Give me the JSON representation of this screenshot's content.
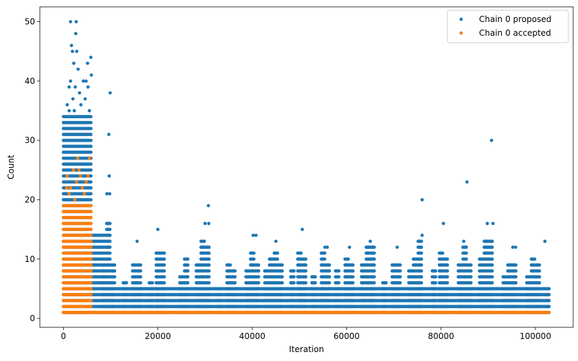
{
  "chart_data": {
    "type": "scatter",
    "title": "",
    "xlabel": "Iteration",
    "ylabel": "Count",
    "xlim": [
      -5000,
      108000
    ],
    "ylim": [
      -1.5,
      52.5
    ],
    "xticks": [
      0,
      20000,
      40000,
      60000,
      80000,
      100000
    ],
    "yticks": [
      0,
      10,
      20,
      30,
      40,
      50
    ],
    "grid": false,
    "legend_position": "top-right",
    "series": [
      {
        "name": "Chain 0 proposed",
        "color": "#1f77b4",
        "bands": [
          {
            "x": [
              0,
              6000
            ],
            "y_max": 34
          },
          {
            "x": [
              6000,
              9000
            ],
            "y_max": 14
          },
          {
            "x": [
              9000,
              103000
            ],
            "y_max": 5
          }
        ],
        "columns": [
          {
            "x": 8500,
            "y_max": 9
          },
          {
            "x": 9500,
            "y_max": 16
          },
          {
            "x": 10500,
            "y_max": 9
          },
          {
            "x": 13000,
            "y_max": 6
          },
          {
            "x": 15000,
            "y_max": 9
          },
          {
            "x": 16000,
            "y_max": 9
          },
          {
            "x": 18500,
            "y_max": 6
          },
          {
            "x": 20000,
            "y_max": 11
          },
          {
            "x": 21000,
            "y_max": 11
          },
          {
            "x": 25000,
            "y_max": 7
          },
          {
            "x": 26000,
            "y_max": 10
          },
          {
            "x": 28500,
            "y_max": 9
          },
          {
            "x": 29500,
            "y_max": 13
          },
          {
            "x": 30500,
            "y_max": 12
          },
          {
            "x": 33000,
            "y_max": 5
          },
          {
            "x": 35000,
            "y_max": 9
          },
          {
            "x": 36000,
            "y_max": 8
          },
          {
            "x": 39000,
            "y_max": 8
          },
          {
            "x": 40000,
            "y_max": 11
          },
          {
            "x": 41000,
            "y_max": 9
          },
          {
            "x": 43000,
            "y_max": 8
          },
          {
            "x": 44000,
            "y_max": 10
          },
          {
            "x": 45000,
            "y_max": 11
          },
          {
            "x": 46000,
            "y_max": 9
          },
          {
            "x": 48500,
            "y_max": 8
          },
          {
            "x": 50000,
            "y_max": 11
          },
          {
            "x": 51000,
            "y_max": 10
          },
          {
            "x": 53000,
            "y_max": 7
          },
          {
            "x": 55000,
            "y_max": 11
          },
          {
            "x": 56000,
            "y_max": 9
          },
          {
            "x": 58000,
            "y_max": 8
          },
          {
            "x": 60000,
            "y_max": 10
          },
          {
            "x": 61000,
            "y_max": 9
          },
          {
            "x": 63500,
            "y_max": 9
          },
          {
            "x": 64500,
            "y_max": 12
          },
          {
            "x": 65500,
            "y_max": 12
          },
          {
            "x": 68000,
            "y_max": 6
          },
          {
            "x": 70000,
            "y_max": 9
          },
          {
            "x": 71000,
            "y_max": 9
          },
          {
            "x": 73500,
            "y_max": 8
          },
          {
            "x": 74500,
            "y_max": 10
          },
          {
            "x": 75500,
            "y_max": 13
          },
          {
            "x": 78500,
            "y_max": 8
          },
          {
            "x": 80000,
            "y_max": 11
          },
          {
            "x": 81000,
            "y_max": 10
          },
          {
            "x": 84000,
            "y_max": 9
          },
          {
            "x": 85000,
            "y_max": 12
          },
          {
            "x": 86000,
            "y_max": 9
          },
          {
            "x": 88500,
            "y_max": 10
          },
          {
            "x": 89500,
            "y_max": 13
          },
          {
            "x": 90500,
            "y_max": 13
          },
          {
            "x": 93500,
            "y_max": 7
          },
          {
            "x": 94500,
            "y_max": 9
          },
          {
            "x": 95500,
            "y_max": 9
          },
          {
            "x": 98500,
            "y_max": 7
          },
          {
            "x": 99500,
            "y_max": 10
          },
          {
            "x": 100500,
            "y_max": 9
          },
          {
            "x": 102500,
            "y_max": 5
          }
        ],
        "points": [
          [
            1500,
            50
          ],
          [
            2700,
            50
          ],
          [
            2600,
            48
          ],
          [
            1700,
            46
          ],
          [
            1900,
            45
          ],
          [
            2800,
            45
          ],
          [
            5800,
            44
          ],
          [
            2200,
            43
          ],
          [
            5100,
            43
          ],
          [
            3100,
            42
          ],
          [
            5900,
            41
          ],
          [
            1500,
            40
          ],
          [
            4200,
            40
          ],
          [
            4800,
            40
          ],
          [
            1200,
            39
          ],
          [
            2500,
            39
          ],
          [
            5200,
            39
          ],
          [
            3400,
            38
          ],
          [
            9900,
            38
          ],
          [
            2000,
            37
          ],
          [
            4600,
            37
          ],
          [
            800,
            36
          ],
          [
            3700,
            36
          ],
          [
            5500,
            35
          ],
          [
            1200,
            35
          ],
          [
            2300,
            35
          ],
          [
            9600,
            31
          ],
          [
            90700,
            30
          ],
          [
            9700,
            24
          ],
          [
            9200,
            21
          ],
          [
            9800,
            21
          ],
          [
            30700,
            19
          ],
          [
            76000,
            20
          ],
          [
            85500,
            23
          ],
          [
            30000,
            16
          ],
          [
            30800,
            16
          ],
          [
            80500,
            16
          ],
          [
            89800,
            16
          ],
          [
            91000,
            16
          ],
          [
            20000,
            15
          ],
          [
            50600,
            15
          ],
          [
            40200,
            14
          ],
          [
            40800,
            14
          ],
          [
            76000,
            14
          ],
          [
            102000,
            13
          ],
          [
            84800,
            13
          ],
          [
            45000,
            13
          ],
          [
            65000,
            13
          ],
          [
            15600,
            13
          ],
          [
            95200,
            12
          ],
          [
            95800,
            12
          ],
          [
            55400,
            12
          ],
          [
            55900,
            12
          ],
          [
            60600,
            12
          ],
          [
            70700,
            12
          ],
          [
            65500,
            12
          ]
        ]
      },
      {
        "name": "Chain 0 accepted",
        "color": "#ff7f0e",
        "bands": [
          {
            "x": [
              0,
              6000
            ],
            "y_max": 19
          }
        ],
        "baseline": {
          "x": [
            0,
            103000
          ],
          "y": 1
        },
        "points": [
          [
            1500,
            22
          ],
          [
            800,
            24
          ],
          [
            2100,
            25
          ],
          [
            3000,
            27
          ],
          [
            5500,
            27
          ],
          [
            4000,
            22
          ],
          [
            2800,
            23
          ],
          [
            3300,
            25
          ],
          [
            4800,
            23
          ],
          [
            5200,
            24
          ],
          [
            1200,
            21
          ],
          [
            3600,
            24
          ],
          [
            2400,
            20
          ],
          [
            4400,
            21
          ],
          [
            700,
            22
          ]
        ]
      }
    ]
  }
}
